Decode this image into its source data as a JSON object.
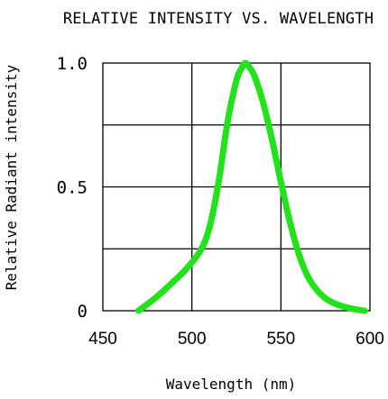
{
  "chart_data": {
    "type": "line",
    "title": "RELATIVE INTENSITY VS. WAVELENGTH",
    "xlabel": "Wavelength (nm)",
    "ylabel": "Relative Radiant intensity",
    "xlim": [
      450,
      600
    ],
    "ylim": [
      0,
      1.0
    ],
    "x_ticks": [
      "450",
      "500",
      "550",
      "600"
    ],
    "y_ticks": [
      "0",
      "0.5",
      "1.0"
    ],
    "grid": true,
    "series": [
      {
        "color": "#22e31a",
        "x": [
          470,
          480,
          490,
          497,
          505,
          510,
          515,
          520,
          525,
          528,
          530,
          532,
          535,
          540,
          545,
          550,
          555,
          560,
          565,
          570,
          575,
          580,
          585,
          590,
          597
        ],
        "y": [
          0.0,
          0.055,
          0.12,
          0.17,
          0.245,
          0.34,
          0.52,
          0.76,
          0.93,
          0.98,
          1.0,
          0.985,
          0.95,
          0.84,
          0.69,
          0.52,
          0.36,
          0.23,
          0.14,
          0.085,
          0.05,
          0.03,
          0.017,
          0.008,
          0.0
        ]
      }
    ]
  }
}
